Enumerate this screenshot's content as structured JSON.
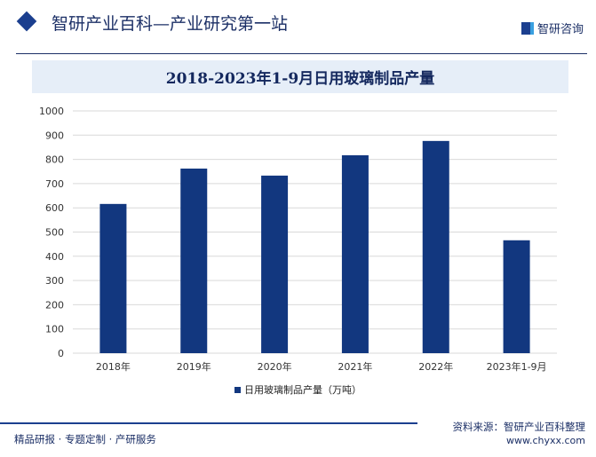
{
  "header": {
    "title": "智研产业百科—产业研究第一站",
    "logo_text": "智研咨询"
  },
  "chart_data": {
    "type": "bar",
    "title": "2018-2023年1-9月日用玻璃制品产量",
    "categories": [
      "2018年",
      "2019年",
      "2020年",
      "2021年",
      "2022年",
      "2023年1-9月"
    ],
    "series": [
      {
        "name": "日用玻璃制品产量（万吨）",
        "values": [
          616,
          762,
          733,
          817,
          876,
          466
        ],
        "color": "#12377f"
      }
    ],
    "ylim": [
      0,
      1000
    ],
    "yticks": [
      0,
      100,
      200,
      300,
      400,
      500,
      600,
      700,
      800,
      900,
      1000
    ],
    "grid": true,
    "legend": "bottom"
  },
  "footer": {
    "source": "资料来源：智研产业百科整理",
    "left": "精品研报 · 专题定制 · 产研服务",
    "url": "www.chyxx.com"
  }
}
